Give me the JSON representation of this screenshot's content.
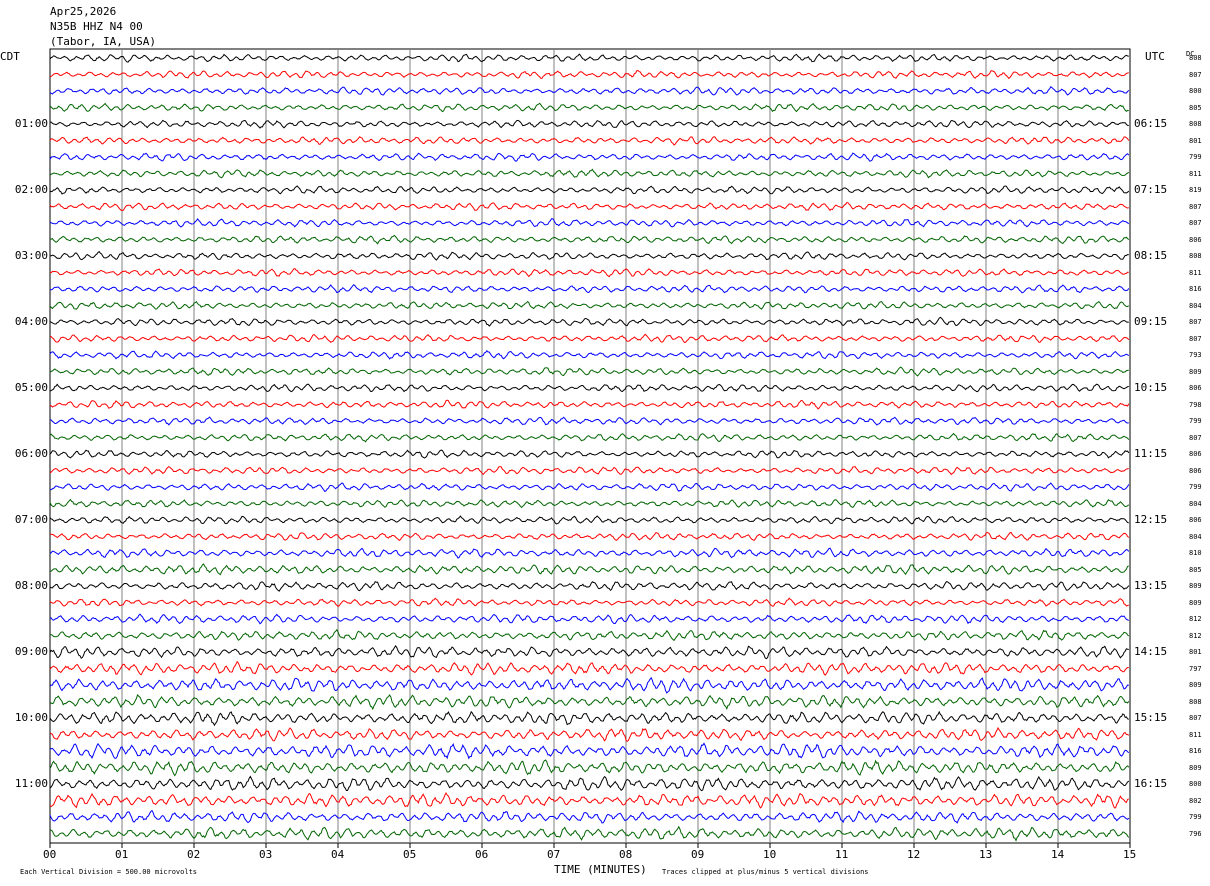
{
  "header": {
    "date": "Apr25,2026",
    "station": "N35B HHZ N4 00",
    "location": "(Tabor, IA, USA)"
  },
  "left_tz": "CDT",
  "right_tz": "UTC",
  "dc_label": "DC",
  "footer": {
    "scale": "Each Vertical Division =  500.00 microvolts",
    "xlabel": "TIME (MINUTES)",
    "clip": "Traces clipped at plus/minus 5 vertical divisions"
  },
  "colors": {
    "trace_cycle": [
      "#000000",
      "#ff0000",
      "#0000ff",
      "#006400"
    ],
    "grid": "#808080"
  },
  "chart_data": {
    "type": "line",
    "title": "",
    "xlabel": "TIME (MINUTES)",
    "xlim": [
      0,
      15
    ],
    "x_ticks": [
      "00",
      "01",
      "02",
      "03",
      "04",
      "05",
      "06",
      "07",
      "08",
      "09",
      "10",
      "11",
      "12",
      "13",
      "14",
      "15"
    ],
    "left_hour_labels": [
      "01:00",
      "02:00",
      "03:00",
      "04:00",
      "05:00",
      "06:00",
      "07:00",
      "08:00",
      "09:00",
      "10:00",
      "11:00"
    ],
    "right_hour_labels": [
      "06:15",
      "07:15",
      "08:15",
      "09:15",
      "10:15",
      "11:15",
      "12:15",
      "13:15",
      "14:15",
      "15:15",
      "16:15"
    ],
    "dc_values": [
      808,
      807,
      800,
      805,
      808,
      801,
      799,
      811,
      819,
      807,
      807,
      806,
      808,
      811,
      816,
      804,
      807,
      807,
      793,
      809,
      806,
      798,
      799,
      807,
      806,
      806,
      799,
      804,
      806,
      804,
      810,
      805,
      809,
      809,
      812,
      812,
      801,
      797,
      809,
      808,
      807,
      811,
      816,
      809,
      800,
      802,
      799,
      796
    ],
    "trace_amplitude": [
      1,
      1,
      1,
      1,
      1,
      1,
      1,
      1,
      1,
      1,
      1,
      1,
      1,
      1,
      1,
      1,
      1,
      1,
      1,
      1,
      1,
      1,
      1,
      1,
      1,
      1,
      1,
      1,
      1,
      1,
      1.2,
      1.3,
      1.2,
      1,
      1.2,
      1.3,
      1.5,
      1.6,
      1.8,
      1.7,
      1.7,
      1.6,
      1.9,
      1.8,
      1.8,
      1.8,
      1.5,
      1.6
    ]
  }
}
